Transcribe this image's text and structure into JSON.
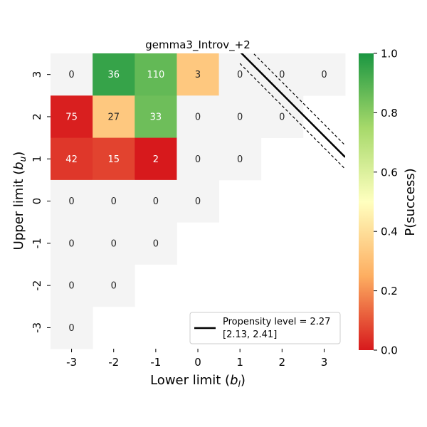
{
  "chart_data": {
    "type": "heatmap",
    "title": "gemma3_Introv_+2",
    "xlabel": "Lower limit (",
    "xlabel_var": "b",
    "xlabel_sub": "l",
    "xlabel_close": ")",
    "ylabel": "Upper limit (",
    "ylabel_var": "b",
    "ylabel_sub": "u",
    "ylabel_close": ")",
    "x_ticks": [
      "-3",
      "-2",
      "-1",
      "0",
      "1",
      "2",
      "3"
    ],
    "y_ticks": [
      "3",
      "2",
      "1",
      "0",
      "-1",
      "-2",
      "-3"
    ],
    "x_values": [
      -3,
      -2,
      -1,
      0,
      1,
      2,
      3
    ],
    "y_values": [
      3,
      2,
      1,
      0,
      -1,
      -2,
      -3
    ],
    "cells": [
      {
        "x": -3,
        "y": 3,
        "count": "0",
        "p": null
      },
      {
        "x": -2,
        "y": 3,
        "count": "36",
        "p": 0.95
      },
      {
        "x": -1,
        "y": 3,
        "count": "110",
        "p": 0.87
      },
      {
        "x": 0,
        "y": 3,
        "count": "3",
        "p": 0.33
      },
      {
        "x": 1,
        "y": 3,
        "count": "0",
        "p": null
      },
      {
        "x": 2,
        "y": 3,
        "count": "0",
        "p": null
      },
      {
        "x": 3,
        "y": 3,
        "count": "0",
        "p": null
      },
      {
        "x": -3,
        "y": 2,
        "count": "75",
        "p": 0.01
      },
      {
        "x": -2,
        "y": 2,
        "count": "27",
        "p": 0.33
      },
      {
        "x": -1,
        "y": 2,
        "count": "33",
        "p": 0.85
      },
      {
        "x": 0,
        "y": 2,
        "count": "0",
        "p": null
      },
      {
        "x": 1,
        "y": 2,
        "count": "0",
        "p": null
      },
      {
        "x": 2,
        "y": 2,
        "count": "0",
        "p": null
      },
      {
        "x": -3,
        "y": 1,
        "count": "42",
        "p": 0.05
      },
      {
        "x": -2,
        "y": 1,
        "count": "15",
        "p": 0.07
      },
      {
        "x": -1,
        "y": 1,
        "count": "2",
        "p": 0.0
      },
      {
        "x": 0,
        "y": 1,
        "count": "0",
        "p": null
      },
      {
        "x": 1,
        "y": 1,
        "count": "0",
        "p": null
      },
      {
        "x": -3,
        "y": 0,
        "count": "0",
        "p": null
      },
      {
        "x": -2,
        "y": 0,
        "count": "0",
        "p": null
      },
      {
        "x": -1,
        "y": 0,
        "count": "0",
        "p": null
      },
      {
        "x": 0,
        "y": 0,
        "count": "0",
        "p": null
      },
      {
        "x": -3,
        "y": -1,
        "count": "0",
        "p": null
      },
      {
        "x": -2,
        "y": -1,
        "count": "0",
        "p": null
      },
      {
        "x": -1,
        "y": -1,
        "count": "0",
        "p": null
      },
      {
        "x": -3,
        "y": -2,
        "count": "0",
        "p": null
      },
      {
        "x": -2,
        "y": -2,
        "count": "0",
        "p": null
      },
      {
        "x": -3,
        "y": -3,
        "count": "0",
        "p": null
      }
    ],
    "propensity_line": {
      "level": 2.27,
      "ci_low": 2.13,
      "ci_high": 2.41
    },
    "legend": {
      "label_line1": "Propensity level = 2.27",
      "label_line2": "[2.13, 2.41]",
      "placement": "bottom-right"
    },
    "colorbar": {
      "label": "P(success)",
      "ticks": [
        "0.0",
        "0.2",
        "0.4",
        "0.6",
        "0.8",
        "1.0"
      ],
      "tick_values": [
        0.0,
        0.2,
        0.4,
        0.6,
        0.8,
        1.0
      ],
      "range": [
        0.0,
        1.0
      ],
      "colormap": [
        "#d7191c",
        "#fdae61",
        "#ffffbf",
        "#a6d96a",
        "#1a9641"
      ]
    },
    "nan_color": "#f4f4f4"
  }
}
